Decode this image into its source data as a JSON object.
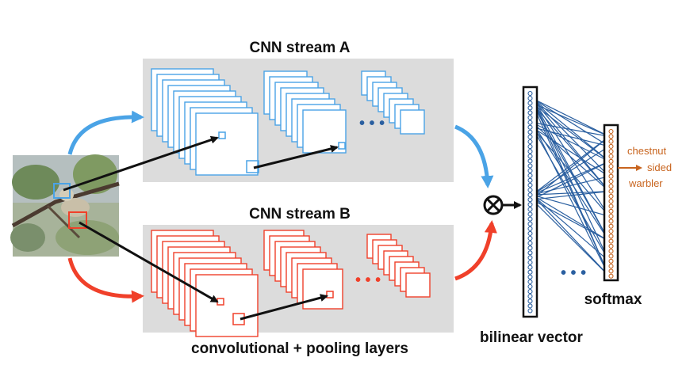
{
  "stream_a": {
    "title": "CNN stream A",
    "color": "#4aa3e6",
    "dots": "• • •"
  },
  "stream_b": {
    "title": "CNN stream B",
    "color": "#f0402a",
    "dots": "• • •"
  },
  "bottom_label": "convolutional + pooling layers",
  "bilinear_label": "bilinear vector",
  "softmax_label": "softmax",
  "output_label": {
    "line1": "chestnut",
    "line2": "sided",
    "line3": "warbler"
  },
  "vector_dots": "• • •",
  "colors": {
    "panel": "#dcdcdc",
    "connection": "#2a5fa0",
    "output": "#c8641e",
    "box_border": "#111111"
  }
}
